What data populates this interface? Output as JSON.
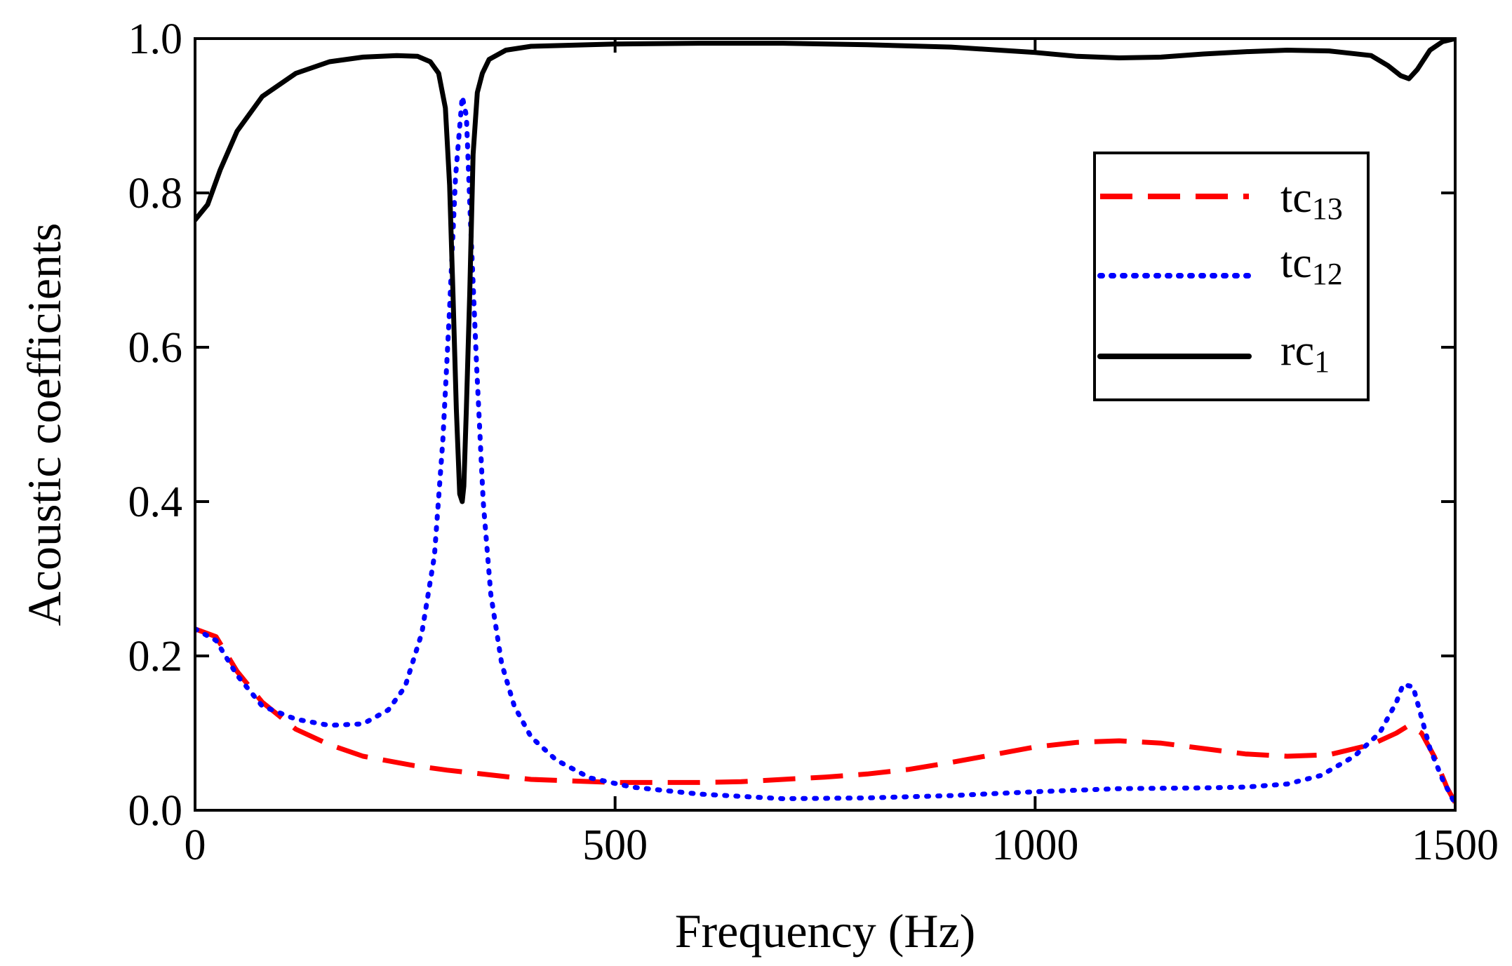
{
  "chart_data": {
    "type": "line",
    "title": "",
    "xlabel": "Frequency (Hz)",
    "ylabel": "Acoustic coefficients",
    "xlim": [
      0,
      1500
    ],
    "ylim": [
      0,
      1.0
    ],
    "xticks": [
      0,
      500,
      1000,
      1500
    ],
    "xtick_labels": [
      "0",
      "500",
      "1000",
      "1500"
    ],
    "yticks": [
      0,
      0.2,
      0.4,
      0.6,
      0.8,
      1.0
    ],
    "ytick_labels": [
      "0.0",
      "0.2",
      "0.4",
      "0.6",
      "0.8",
      "1.0"
    ],
    "grid": false,
    "legend_position": "top-right",
    "series": [
      {
        "name": "tc13",
        "legend_main": "tc",
        "legend_sub": "13",
        "color": "#ff0000",
        "style": "dashed",
        "points": [
          [
            0,
            0.235
          ],
          [
            25,
            0.225
          ],
          [
            50,
            0.18
          ],
          [
            80,
            0.14
          ],
          [
            120,
            0.105
          ],
          [
            160,
            0.085
          ],
          [
            200,
            0.07
          ],
          [
            260,
            0.058
          ],
          [
            300,
            0.052
          ],
          [
            350,
            0.046
          ],
          [
            400,
            0.04
          ],
          [
            450,
            0.038
          ],
          [
            500,
            0.036
          ],
          [
            550,
            0.036
          ],
          [
            600,
            0.036
          ],
          [
            650,
            0.037
          ],
          [
            700,
            0.04
          ],
          [
            750,
            0.043
          ],
          [
            800,
            0.047
          ],
          [
            850,
            0.053
          ],
          [
            900,
            0.062
          ],
          [
            950,
            0.072
          ],
          [
            1000,
            0.082
          ],
          [
            1050,
            0.088
          ],
          [
            1100,
            0.09
          ],
          [
            1150,
            0.087
          ],
          [
            1200,
            0.08
          ],
          [
            1250,
            0.073
          ],
          [
            1300,
            0.07
          ],
          [
            1350,
            0.072
          ],
          [
            1400,
            0.085
          ],
          [
            1430,
            0.1
          ],
          [
            1445,
            0.11
          ],
          [
            1460,
            0.1
          ],
          [
            1475,
            0.07
          ],
          [
            1490,
            0.03
          ],
          [
            1500,
            0.01
          ]
        ]
      },
      {
        "name": "tc12",
        "legend_main": "tc",
        "legend_sub": "12",
        "color": "#0000ff",
        "style": "dotted",
        "points": [
          [
            0,
            0.235
          ],
          [
            25,
            0.22
          ],
          [
            50,
            0.175
          ],
          [
            80,
            0.135
          ],
          [
            120,
            0.118
          ],
          [
            160,
            0.11
          ],
          [
            200,
            0.112
          ],
          [
            230,
            0.13
          ],
          [
            250,
            0.16
          ],
          [
            270,
            0.23
          ],
          [
            285,
            0.33
          ],
          [
            295,
            0.48
          ],
          [
            303,
            0.65
          ],
          [
            310,
            0.82
          ],
          [
            318,
            0.925
          ],
          [
            323,
            0.9
          ],
          [
            328,
            0.76
          ],
          [
            335,
            0.58
          ],
          [
            343,
            0.4
          ],
          [
            352,
            0.28
          ],
          [
            365,
            0.19
          ],
          [
            380,
            0.135
          ],
          [
            400,
            0.095
          ],
          [
            430,
            0.065
          ],
          [
            470,
            0.042
          ],
          [
            520,
            0.03
          ],
          [
            600,
            0.021
          ],
          [
            700,
            0.015
          ],
          [
            800,
            0.016
          ],
          [
            900,
            0.019
          ],
          [
            1000,
            0.024
          ],
          [
            1100,
            0.028
          ],
          [
            1200,
            0.029
          ],
          [
            1250,
            0.03
          ],
          [
            1300,
            0.034
          ],
          [
            1340,
            0.045
          ],
          [
            1380,
            0.07
          ],
          [
            1410,
            0.1
          ],
          [
            1430,
            0.14
          ],
          [
            1438,
            0.163
          ],
          [
            1450,
            0.16
          ],
          [
            1460,
            0.12
          ],
          [
            1470,
            0.08
          ],
          [
            1485,
            0.04
          ],
          [
            1500,
            0.008
          ]
        ]
      },
      {
        "name": "rc1",
        "legend_main": "rc",
        "legend_sub": "1",
        "color": "#000000",
        "style": "solid",
        "points": [
          [
            0,
            0.765
          ],
          [
            15,
            0.785
          ],
          [
            30,
            0.83
          ],
          [
            50,
            0.88
          ],
          [
            80,
            0.925
          ],
          [
            120,
            0.955
          ],
          [
            160,
            0.97
          ],
          [
            200,
            0.976
          ],
          [
            240,
            0.978
          ],
          [
            265,
            0.977
          ],
          [
            280,
            0.97
          ],
          [
            290,
            0.955
          ],
          [
            298,
            0.91
          ],
          [
            303,
            0.81
          ],
          [
            307,
            0.67
          ],
          [
            311,
            0.52
          ],
          [
            315,
            0.41
          ],
          [
            318,
            0.4
          ],
          [
            320,
            0.42
          ],
          [
            323,
            0.52
          ],
          [
            327,
            0.67
          ],
          [
            331,
            0.85
          ],
          [
            336,
            0.93
          ],
          [
            342,
            0.955
          ],
          [
            350,
            0.973
          ],
          [
            370,
            0.985
          ],
          [
            400,
            0.99
          ],
          [
            500,
            0.993
          ],
          [
            600,
            0.994
          ],
          [
            700,
            0.994
          ],
          [
            800,
            0.992
          ],
          [
            900,
            0.989
          ],
          [
            1000,
            0.982
          ],
          [
            1050,
            0.977
          ],
          [
            1100,
            0.975
          ],
          [
            1150,
            0.976
          ],
          [
            1200,
            0.98
          ],
          [
            1250,
            0.983
          ],
          [
            1300,
            0.985
          ],
          [
            1350,
            0.984
          ],
          [
            1400,
            0.978
          ],
          [
            1420,
            0.965
          ],
          [
            1435,
            0.952
          ],
          [
            1445,
            0.948
          ],
          [
            1455,
            0.96
          ],
          [
            1470,
            0.985
          ],
          [
            1485,
            0.996
          ],
          [
            1500,
            1.0
          ]
        ]
      }
    ]
  }
}
